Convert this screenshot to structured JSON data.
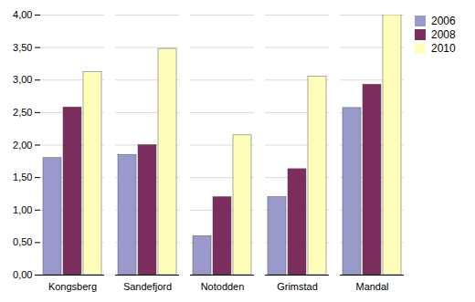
{
  "chart_data": {
    "type": "bar",
    "categories": [
      "Kongsberg",
      "Sandefjord",
      "Notodden",
      "Grimstad",
      "Mandal"
    ],
    "series": [
      {
        "name": "2006",
        "color": "#9999CC",
        "values": [
          1.8,
          1.85,
          0.6,
          1.2,
          2.57
        ]
      },
      {
        "name": "2008",
        "color": "#7B2D5E",
        "values": [
          2.58,
          2.0,
          1.2,
          1.63,
          2.93
        ]
      },
      {
        "name": "2010",
        "color": "#FFFFBB",
        "values": [
          3.12,
          3.48,
          2.15,
          3.05,
          4.0
        ]
      }
    ],
    "ylim": [
      0,
      4.0
    ],
    "yticks": [
      {
        "value": 0.0,
        "label": "0,00"
      },
      {
        "value": 0.5,
        "label": "0,50"
      },
      {
        "value": 1.0,
        "label": "1,00"
      },
      {
        "value": 1.5,
        "label": "1,50"
      },
      {
        "value": 2.0,
        "label": "2,00"
      },
      {
        "value": 2.5,
        "label": "2,50"
      },
      {
        "value": 3.0,
        "label": "3,00"
      },
      {
        "value": 3.5,
        "label": "3,50"
      },
      {
        "value": 4.0,
        "label": "4,00"
      }
    ],
    "grid": true,
    "legend": "right"
  }
}
